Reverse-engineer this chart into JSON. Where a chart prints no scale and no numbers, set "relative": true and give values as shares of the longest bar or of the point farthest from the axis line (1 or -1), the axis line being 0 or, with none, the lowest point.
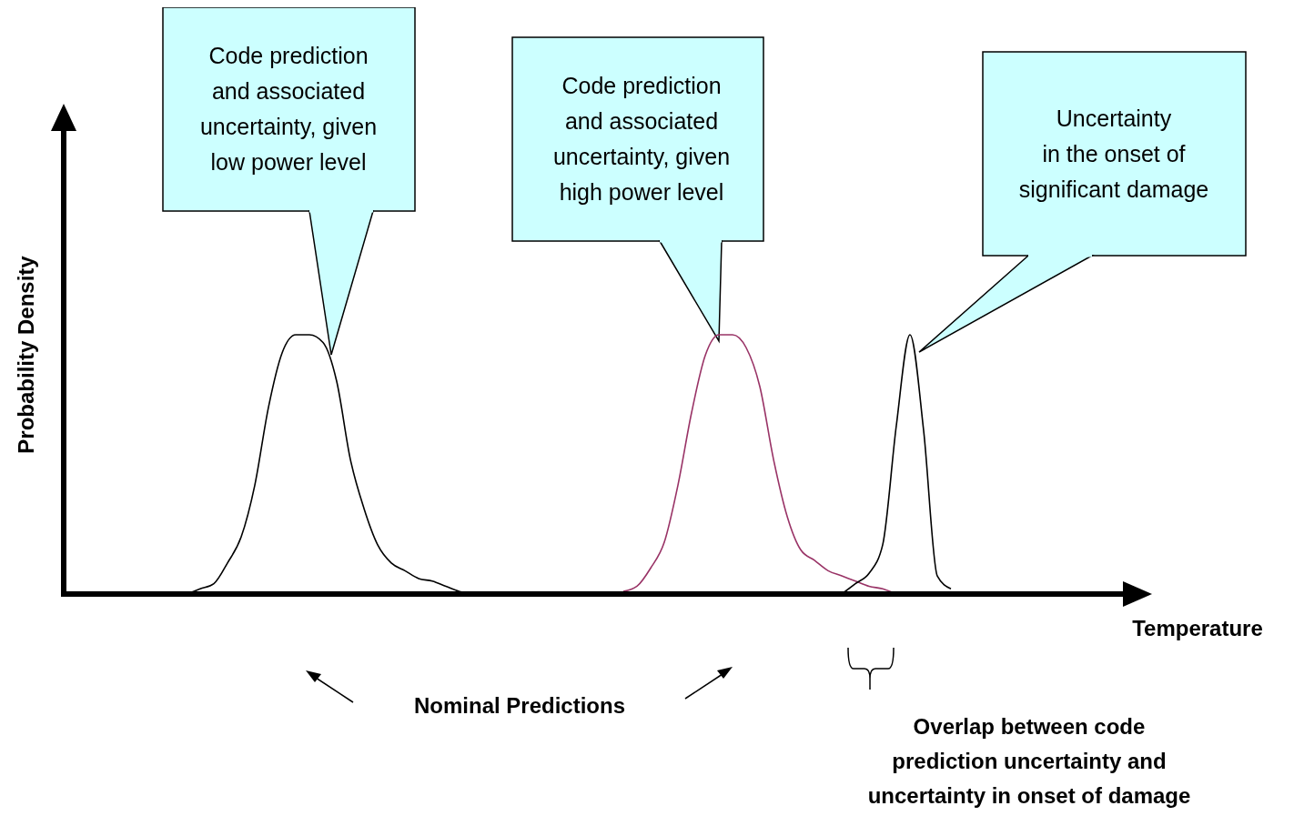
{
  "chart_data": {
    "type": "line",
    "relative": true,
    "xlabel": "Temperature",
    "ylabel": "Probability Density",
    "categories": [
      null,
      null,
      null,
      null,
      null,
      null,
      null,
      null,
      null,
      null,
      null,
      null,
      null,
      null,
      null,
      null,
      null,
      null,
      null,
      null,
      null,
      null,
      null,
      null,
      null,
      null,
      null,
      null,
      null,
      null,
      null,
      null,
      null,
      null,
      null,
      null,
      null,
      null,
      null,
      null,
      null,
      null,
      null,
      null,
      null,
      null,
      null,
      null,
      null,
      null,
      null,
      null,
      null,
      null,
      null,
      null,
      null,
      null,
      null,
      null,
      null,
      null,
      null,
      null,
      null,
      null,
      null,
      null,
      null,
      null,
      null,
      null,
      null,
      null,
      null,
      null,
      null,
      null,
      null
    ],
    "series": [
      {
        "color": "#000000",
        "values": [
          null,
          null,
          null,
          null,
          null,
          null,
          null,
          null,
          null,
          0,
          0.02,
          0.04,
          0.12,
          0.22,
          0.42,
          0.72,
          0.93,
          1,
          1,
          0.97,
          0.82,
          0.52,
          0.33,
          0.19,
          0.12,
          0.09,
          0.06,
          0.05,
          0.03,
          0.01,
          0,
          null,
          null,
          null,
          null,
          null,
          null,
          null,
          null,
          null,
          null,
          null,
          null,
          null,
          null,
          null,
          null,
          null,
          null,
          null,
          null,
          null,
          null,
          null,
          null,
          null,
          null,
          null,
          null,
          null,
          null,
          null,
          null,
          null,
          null,
          null,
          null,
          null,
          null,
          null,
          null,
          null,
          null,
          null,
          null,
          null,
          null,
          null,
          null
        ]
      },
      {
        "color": "#993366",
        "values": [
          null,
          null,
          null,
          null,
          null,
          null,
          null,
          null,
          null,
          null,
          null,
          null,
          null,
          null,
          null,
          null,
          null,
          null,
          null,
          null,
          null,
          null,
          null,
          null,
          null,
          null,
          null,
          null,
          null,
          null,
          null,
          null,
          null,
          null,
          null,
          null,
          null,
          null,
          null,
          null,
          null,
          0.01,
          0.03,
          0.1,
          0.2,
          0.42,
          0.7,
          0.92,
          1,
          1,
          0.95,
          0.8,
          0.52,
          0.3,
          0.17,
          0.13,
          0.09,
          0.07,
          0.05,
          0.03,
          0.02,
          0,
          null,
          null,
          null,
          null,
          null,
          null,
          null,
          null,
          null,
          null,
          null,
          null,
          null,
          null,
          null,
          null,
          null
        ]
      },
      {
        "color": "#000000",
        "values": [
          null,
          null,
          null,
          null,
          null,
          null,
          null,
          null,
          null,
          null,
          null,
          null,
          null,
          null,
          null,
          null,
          null,
          null,
          null,
          null,
          null,
          null,
          null,
          null,
          null,
          null,
          null,
          null,
          null,
          null,
          null,
          null,
          null,
          null,
          null,
          null,
          null,
          null,
          null,
          null,
          null,
          null,
          null,
          null,
          null,
          null,
          null,
          null,
          null,
          null,
          null,
          null,
          null,
          null,
          null,
          null,
          null,
          0,
          0.04,
          0.08,
          0.19,
          0.65,
          1,
          0.63,
          0.07,
          0.02,
          null,
          null,
          null,
          null,
          null,
          null,
          null,
          null,
          null,
          null,
          null,
          null,
          null
        ]
      }
    ],
    "annotations": [
      "Code prediction\nand associated\nuncertainty, given\nlow power level",
      "Code prediction\nand associated\nuncertainty, given\nhigh power level",
      "Uncertainty\nin the onset of\nsignificant damage",
      "Nominal Predictions",
      "Overlap between code\nprediction uncertainty and\nuncertainty in onset of damage"
    ]
  }
}
